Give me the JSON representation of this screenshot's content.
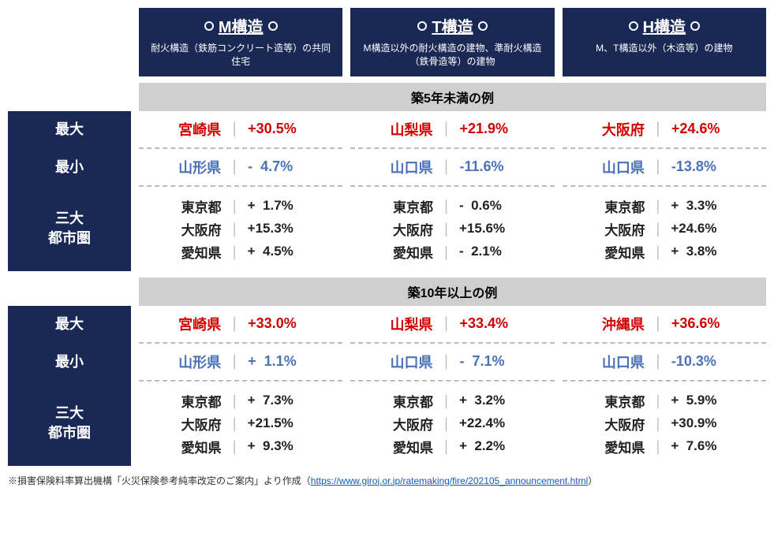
{
  "colors": {
    "header_bg": "#1a2855",
    "header_text": "#ffffff",
    "section_bg": "#cfcfcf",
    "max_color": "#d10000",
    "min_color": "#4a72b8",
    "metro_color": "#222222",
    "separator_color": "#bcbcbc",
    "link_color": "#1a5ab8"
  },
  "columns": [
    {
      "title": "M構造",
      "subtitle": "耐火構造（鉄筋コンクリート造等）の共同住宅"
    },
    {
      "title": "T構造",
      "subtitle": "M構造以外の耐火構造の建物、準耐火構造（鉄骨造等）の建物"
    },
    {
      "title": "H構造",
      "subtitle": "M、T構造以外（木造等）の建物"
    }
  ],
  "sections": [
    {
      "title": "築5年未満の例",
      "rows": [
        {
          "label": "最大",
          "style": "max",
          "cells": [
            {
              "pref": "宮崎県",
              "pct": "+30.5%"
            },
            {
              "pref": "山梨県",
              "pct": "+21.9%"
            },
            {
              "pref": "大阪府",
              "pct": "+24.6%"
            }
          ]
        },
        {
          "label": "最小",
          "style": "min",
          "cells": [
            {
              "pref": "山形県",
              "pct": "-  4.7%"
            },
            {
              "pref": "山口県",
              "pct": "-11.6%"
            },
            {
              "pref": "山口県",
              "pct": "-13.8%"
            }
          ]
        },
        {
          "label": "三大\n都市圏",
          "style": "metro",
          "multi": true,
          "cells": [
            [
              {
                "pref": "東京都",
                "pct": "+  1.7%"
              },
              {
                "pref": "大阪府",
                "pct": "+15.3%"
              },
              {
                "pref": "愛知県",
                "pct": "+  4.5%"
              }
            ],
            [
              {
                "pref": "東京都",
                "pct": "-  0.6%"
              },
              {
                "pref": "大阪府",
                "pct": "+15.6%"
              },
              {
                "pref": "愛知県",
                "pct": "-  2.1%"
              }
            ],
            [
              {
                "pref": "東京都",
                "pct": "+  3.3%"
              },
              {
                "pref": "大阪府",
                "pct": "+24.6%"
              },
              {
                "pref": "愛知県",
                "pct": "+  3.8%"
              }
            ]
          ]
        }
      ]
    },
    {
      "title": "築10年以上の例",
      "rows": [
        {
          "label": "最大",
          "style": "max",
          "cells": [
            {
              "pref": "宮崎県",
              "pct": "+33.0%"
            },
            {
              "pref": "山梨県",
              "pct": "+33.4%"
            },
            {
              "pref": "沖縄県",
              "pct": "+36.6%"
            }
          ]
        },
        {
          "label": "最小",
          "style": "min",
          "cells": [
            {
              "pref": "山形県",
              "pct": "+  1.1%"
            },
            {
              "pref": "山口県",
              "pct": "-  7.1%"
            },
            {
              "pref": "山口県",
              "pct": "-10.3%"
            }
          ]
        },
        {
          "label": "三大\n都市圏",
          "style": "metro",
          "multi": true,
          "cells": [
            [
              {
                "pref": "東京都",
                "pct": "+  7.3%"
              },
              {
                "pref": "大阪府",
                "pct": "+21.5%"
              },
              {
                "pref": "愛知県",
                "pct": "+  9.3%"
              }
            ],
            [
              {
                "pref": "東京都",
                "pct": "+  3.2%"
              },
              {
                "pref": "大阪府",
                "pct": "+22.4%"
              },
              {
                "pref": "愛知県",
                "pct": "+  2.2%"
              }
            ],
            [
              {
                "pref": "東京都",
                "pct": "+  5.9%"
              },
              {
                "pref": "大阪府",
                "pct": "+30.9%"
              },
              {
                "pref": "愛知県",
                "pct": "+  7.6%"
              }
            ]
          ]
        }
      ]
    }
  ],
  "footnote": {
    "prefix": "※損害保険料率算出機構「火災保険参考純率改定のご案内」より作成（",
    "link_text": "https://www.giroj.or.jp/ratemaking/fire/202105_announcement.html",
    "link_href": "https://www.giroj.or.jp/ratemaking/fire/202105_announcement.html",
    "suffix": "）"
  }
}
